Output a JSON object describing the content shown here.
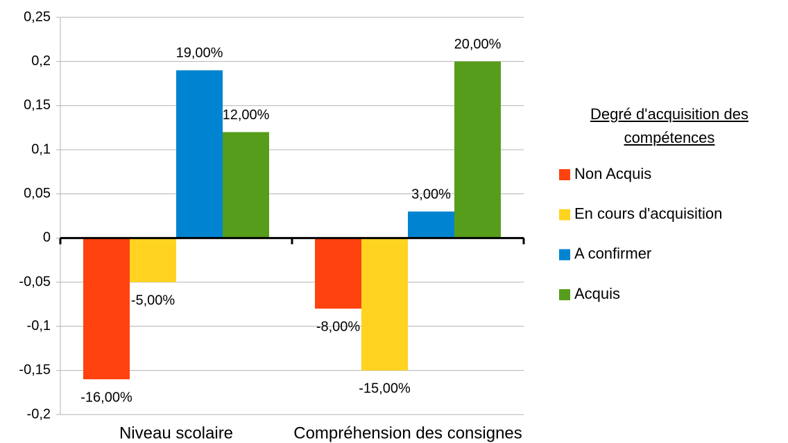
{
  "chart_data": {
    "type": "bar",
    "categories": [
      "Niveau scolaire",
      "Compréhension des consignes"
    ],
    "legend_title": "Degré d'acquisition des compétences",
    "legend_position": "right",
    "grid": true,
    "ylim": [
      -0.2,
      0.25
    ],
    "yticks": [
      {
        "value": -0.2,
        "label": "-0,2"
      },
      {
        "value": -0.15,
        "label": "-0,15"
      },
      {
        "value": -0.1,
        "label": "-0,1"
      },
      {
        "value": -0.05,
        "label": "-0,05"
      },
      0,
      {
        "value": 0.05,
        "label": "0,05"
      },
      {
        "value": 0.1,
        "label": "0,1"
      },
      {
        "value": 0.15,
        "label": "0,15"
      },
      {
        "value": 0.2,
        "label": "0,2"
      },
      {
        "value": 0.25,
        "label": "0,25"
      }
    ],
    "series": [
      {
        "name": "Non Acquis",
        "color": "#ff420e",
        "values": [
          -0.16,
          -0.08
        ],
        "value_labels": [
          "-16,00%",
          "-8,00%"
        ]
      },
      {
        "name": "En cours d'acquisition",
        "color": "#ffd320",
        "values": [
          -0.05,
          -0.15
        ],
        "value_labels": [
          "-5,00%",
          "-15,00%"
        ]
      },
      {
        "name": "A confirmer",
        "color": "#0084d1",
        "values": [
          0.19,
          0.03
        ],
        "value_labels": [
          "19,00%",
          "3,00%"
        ]
      },
      {
        "name": "Acquis",
        "color": "#579d1c",
        "values": [
          0.12,
          0.2
        ],
        "value_labels": [
          "12,00%",
          "20,00%"
        ]
      }
    ]
  }
}
